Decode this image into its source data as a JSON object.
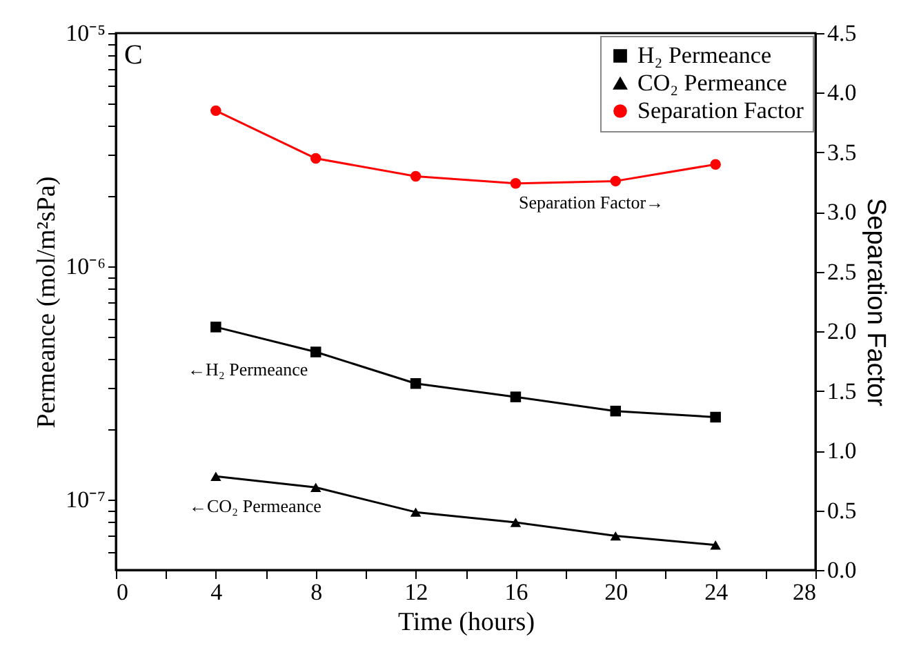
{
  "chart_data": {
    "type": "line",
    "xlabel": "Time (hours)",
    "ylabel": "Permeance (mol/m²sPa)",
    "y2label": "Separation Factor",
    "x": [
      4,
      8,
      12,
      16,
      20,
      24
    ],
    "series": [
      {
        "name": "H₂ Permeance",
        "color": "#000000",
        "marker": "square",
        "values": [
          5.5e-07,
          4.3e-07,
          3.15e-07,
          2.76e-07,
          2.4e-07,
          2.26e-07
        ]
      },
      {
        "name": "CO₂ Permeance",
        "color": "#000000",
        "marker": "triangle",
        "values": [
          1.26e-07,
          1.13e-07,
          8.85e-08,
          8e-08,
          7e-08,
          6.4e-08
        ]
      },
      {
        "name": "Separation Factor",
        "color": "#ff0000",
        "marker": "circle",
        "axis": "y2",
        "values": [
          3.85,
          3.45,
          3.3,
          3.24,
          3.26,
          3.4
        ]
      }
    ],
    "log": "y",
    "xlim": [
      0,
      28
    ],
    "ylim": [
      5e-08,
      1e-05
    ],
    "y2lim": [
      0,
      4.5
    ],
    "xticks": [
      0,
      {
        "value": 2,
        "label": null
      },
      4,
      {
        "value": 6,
        "label": null
      },
      8,
      {
        "value": 10,
        "label": null
      },
      12,
      {
        "value": 14,
        "label": null
      },
      16,
      {
        "value": 18,
        "label": null
      },
      20,
      {
        "value": 22,
        "label": null
      },
      24,
      {
        "value": 26,
        "label": null
      },
      28
    ],
    "yticks": [
      {
        "value": 6e-08,
        "label": null
      },
      {
        "value": 7e-08,
        "label": null
      },
      {
        "value": 8e-08,
        "label": null
      },
      {
        "value": 9e-08,
        "label": null
      },
      {
        "value": 1e-07,
        "label": "10⁻⁷"
      },
      {
        "value": 2e-07,
        "label": null
      },
      {
        "value": 3e-07,
        "label": null
      },
      {
        "value": 4e-07,
        "label": null
      },
      {
        "value": 5e-07,
        "label": null
      },
      {
        "value": 6e-07,
        "label": null
      },
      {
        "value": 7e-07,
        "label": null
      },
      {
        "value": 8e-07,
        "label": null
      },
      {
        "value": 9e-07,
        "label": null
      },
      {
        "value": 1e-06,
        "label": "10⁻⁶"
      },
      {
        "value": 2e-06,
        "label": null
      },
      {
        "value": 3e-06,
        "label": null
      },
      {
        "value": 4e-06,
        "label": null
      },
      {
        "value": 5e-06,
        "label": null
      },
      {
        "value": 6e-06,
        "label": null
      },
      {
        "value": 7e-06,
        "label": null
      },
      {
        "value": 8e-06,
        "label": null
      },
      {
        "value": 9e-06,
        "label": null
      },
      {
        "value": 1e-05,
        "label": "10⁻⁵"
      }
    ],
    "y2ticks": [
      {
        "value": 0,
        "label": "0.0"
      },
      {
        "value": 0.5,
        "label": "0.5"
      },
      {
        "value": 1,
        "label": "1.0"
      },
      {
        "value": 1.5,
        "label": "1.5"
      },
      {
        "value": 2,
        "label": "2.0"
      },
      {
        "value": 2.5,
        "label": "2.5"
      },
      {
        "value": 3,
        "label": "3.0"
      },
      {
        "value": 3.5,
        "label": "3.5"
      },
      {
        "value": 4,
        "label": "4.0"
      },
      {
        "value": 4.5,
        "label": "4.5"
      }
    ],
    "annotations": [
      "C",
      "←H₂ Permeance",
      "←CO₂ Permeance",
      "Separation Factor→"
    ],
    "grid": false,
    "legend": "top right",
    "line_style": "solid"
  }
}
